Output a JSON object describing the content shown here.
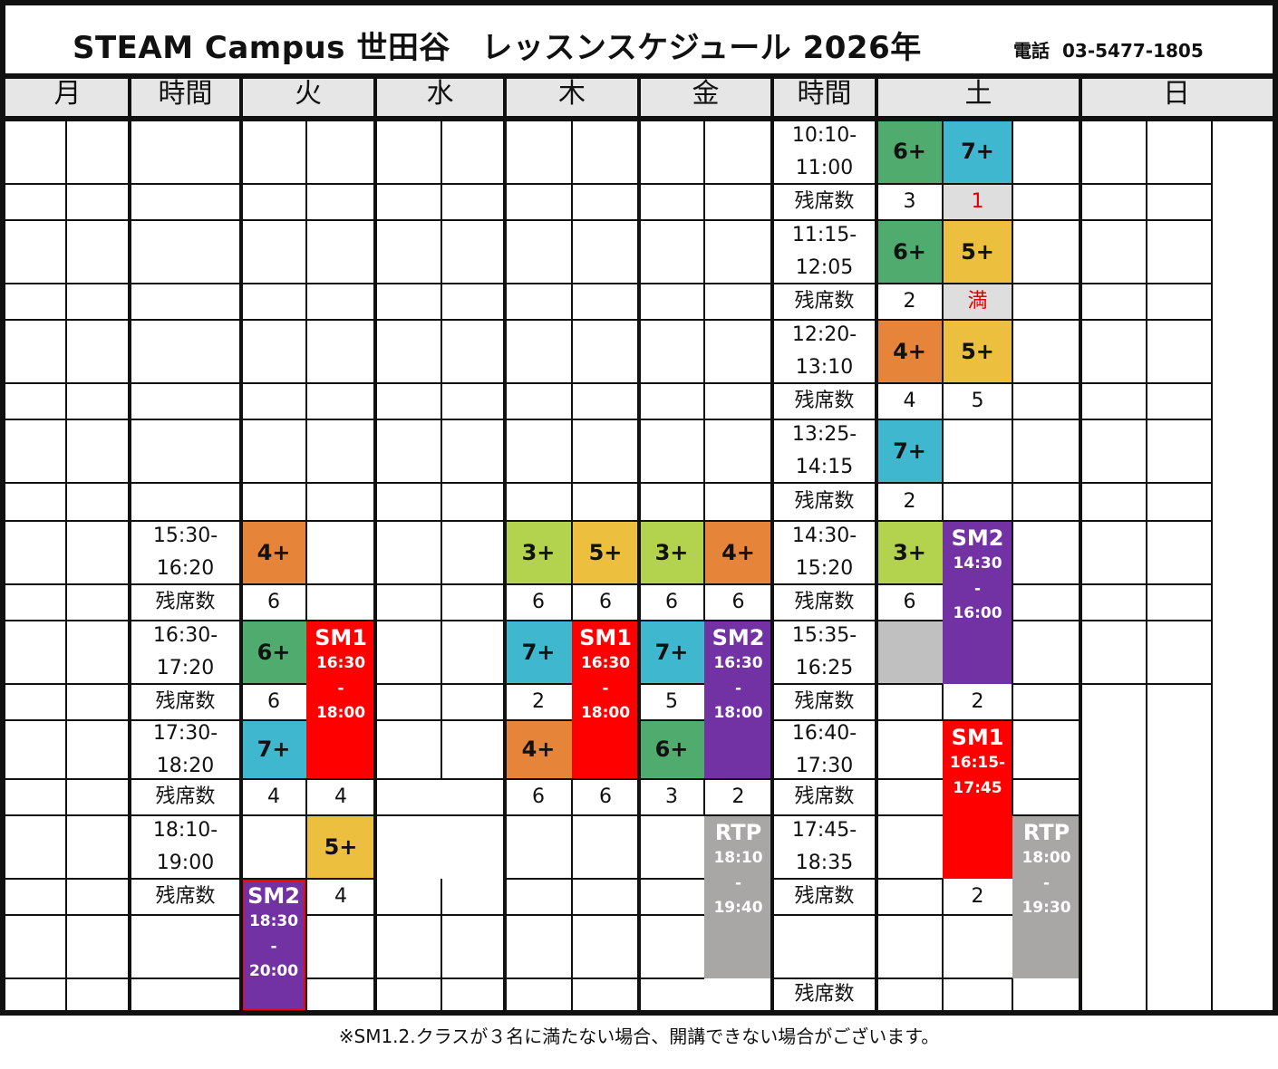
{
  "header": {
    "title": "STEAM Campus 世田谷　レッスンスケジュール 2026年",
    "phone_label": "電話",
    "phone_number": "03-5477-1805"
  },
  "days": {
    "mon": "月",
    "time": "時間",
    "tue": "火",
    "wed": "水",
    "thu": "木",
    "fri": "金",
    "time2": "時間",
    "sat": "土",
    "sun": "日"
  },
  "seats_label": "残席数",
  "weekday_times": [
    "15:30-\n16:20",
    "16:30-\n17:20",
    "17:30-\n18:20",
    "18:10-\n19:00"
  ],
  "saturday_times": [
    "10:10-\n11:00",
    "11:15-\n12:05",
    "12:20-\n13:10",
    "13:25-\n14:15",
    "14:30-\n15:20",
    "15:35-\n16:25",
    "16:40-\n17:30",
    "17:45-\n18:35"
  ],
  "levels": {
    "tue_1530": "4+",
    "tue_1630": "6+",
    "tue_1730": "7+",
    "tue_1810": "5+",
    "thu_1530_a": "3+",
    "thu_1530_b": "5+",
    "thu_1630": "7+",
    "thu_1730": "4+",
    "fri_1530_a": "3+",
    "fri_1530_b": "4+",
    "fri_1630": "7+",
    "fri_1730": "6+",
    "sat_1010_a": "6+",
    "sat_1010_b": "7+",
    "sat_1115_a": "6+",
    "sat_1115_b": "5+",
    "sat_1220_a": "4+",
    "sat_1220_b": "5+",
    "sat_1325_a": "7+",
    "sat_1430_a": "3+"
  },
  "seats": {
    "tue_1530": "6",
    "tue_1630": "6",
    "tue_1730_a": "4",
    "tue_1730_b": "4",
    "tue_1810": "4",
    "thu_1530_a": "6",
    "thu_1530_b": "6",
    "thu_1630": "2",
    "thu_1730_a": "6",
    "thu_1730_b": "6",
    "fri_1530_a": "6",
    "fri_1530_b": "6",
    "fri_1630": "5",
    "fri_1730_a": "3",
    "fri_1730_b": "2",
    "sat_1010_a": "3",
    "sat_1010_b": "1",
    "sat_1115_a": "2",
    "sat_1115_b": "満",
    "sat_1220_a": "4",
    "sat_1220_b": "5",
    "sat_1325_a": "2",
    "sat_1430_a": "6",
    "sat_1535_b": "2",
    "sat_1745_b": "2"
  },
  "specials": {
    "tue_sm1": {
      "name": "SM1",
      "time": "16:30\n-\n18:00"
    },
    "tue_sm2": {
      "name": "SM2",
      "time": "18:30\n-\n20:00"
    },
    "thu_sm1": {
      "name": "SM1",
      "time": "16:30\n-\n18:00"
    },
    "fri_sm2": {
      "name": "SM2",
      "time": "16:30\n-\n18:00"
    },
    "fri_rtp": {
      "name": "RTP",
      "time": "18:10\n-\n19:40"
    },
    "sat_sm2": {
      "name": "SM2",
      "time": "14:30\n-\n16:00"
    },
    "sat_sm1": {
      "name": "SM1",
      "time": "16:15-\n17:45"
    },
    "sat_rtp": {
      "name": "RTP",
      "time": "18:00\n-\n19:30"
    }
  },
  "colors": {
    "level_3plus": "#b3d34f",
    "level_4plus": "#e6843a",
    "level_5plus": "#ecc03e",
    "level_6plus": "#4fac6e",
    "level_7plus": "#3fb7cf",
    "sm1": "#ff0000",
    "sm2": "#7232a3",
    "rtp": "#a9a6a6",
    "header_band": "#e6e6e6",
    "full_or_few_seats": "#dedede",
    "closed_slot": "#c0c0c0",
    "low_seats_text": "#e00000"
  },
  "footnote": "※SM1.2.クラスが３名に満たない場合、開講できない場合がございます。"
}
